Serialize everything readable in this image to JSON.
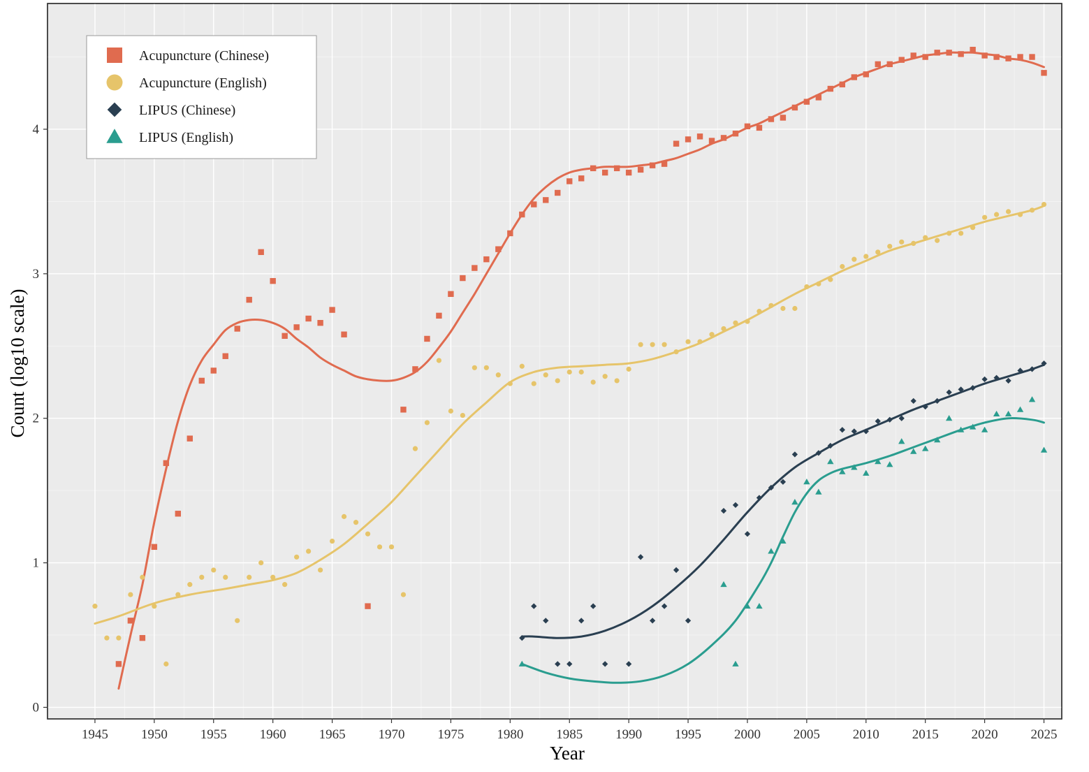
{
  "chart_data": {
    "type": "scatter",
    "title": "",
    "xlabel": "Year",
    "ylabel": "Count (log10 scale)",
    "xlim": [
      1941,
      2026.5
    ],
    "ylim": [
      -0.08,
      4.87
    ],
    "x_ticks": [
      "1945",
      "1950",
      "1955",
      "1960",
      "1965",
      "1970",
      "1975",
      "1980",
      "1985",
      "1990",
      "1995",
      "2000",
      "2005",
      "2010",
      "2015",
      "2020",
      "2025"
    ],
    "y_ticks": [
      "0",
      "1",
      "2",
      "3",
      "4"
    ],
    "grid": true,
    "legend_position": "top-left",
    "series": [
      {
        "name": "Acupuncture (Chinese)",
        "color": "#e06b4f",
        "marker": "square",
        "x": [
          1947,
          1948,
          1949,
          1950,
          1951,
          1952,
          1953,
          1954,
          1955,
          1956,
          1957,
          1958,
          1959,
          1960,
          1961,
          1962,
          1963,
          1964,
          1965,
          1966,
          1968,
          1971,
          1972,
          1973,
          1974,
          1975,
          1976,
          1977,
          1978,
          1979,
          1980,
          1981,
          1982,
          1983,
          1984,
          1985,
          1986,
          1987,
          1988,
          1989,
          1990,
          1991,
          1992,
          1993,
          1994,
          1995,
          1996,
          1997,
          1998,
          1999,
          2000,
          2001,
          2002,
          2003,
          2004,
          2005,
          2006,
          2007,
          2008,
          2009,
          2010,
          2011,
          2012,
          2013,
          2014,
          2015,
          2016,
          2017,
          2018,
          2019,
          2020,
          2021,
          2022,
          2023,
          2024,
          2025
        ],
        "values": [
          0.3,
          0.6,
          0.48,
          1.11,
          1.69,
          1.34,
          1.86,
          2.26,
          2.33,
          2.43,
          2.62,
          2.82,
          3.15,
          2.95,
          2.57,
          2.63,
          2.69,
          2.66,
          2.75,
          2.58,
          0.7,
          2.06,
          2.34,
          2.55,
          2.71,
          2.86,
          2.97,
          3.04,
          3.1,
          3.17,
          3.28,
          3.41,
          3.48,
          3.51,
          3.56,
          3.64,
          3.66,
          3.73,
          3.7,
          3.73,
          3.7,
          3.72,
          3.75,
          3.76,
          3.9,
          3.93,
          3.95,
          3.92,
          3.94,
          3.97,
          4.02,
          4.01,
          4.07,
          4.08,
          4.15,
          4.19,
          4.22,
          4.28,
          4.31,
          4.36,
          4.38,
          4.45,
          4.45,
          4.48,
          4.51,
          4.5,
          4.53,
          4.53,
          4.52,
          4.55,
          4.51,
          4.5,
          4.49,
          4.5,
          4.5,
          4.39
        ],
        "trend": [
          [
            1947,
            0.13
          ],
          [
            1948,
            0.5
          ],
          [
            1949,
            0.85
          ],
          [
            1950,
            1.28
          ],
          [
            1951,
            1.65
          ],
          [
            1952,
            1.98
          ],
          [
            1953,
            2.23
          ],
          [
            1954,
            2.4
          ],
          [
            1955,
            2.51
          ],
          [
            1956,
            2.61
          ],
          [
            1957,
            2.66
          ],
          [
            1958,
            2.68
          ],
          [
            1959,
            2.68
          ],
          [
            1960,
            2.66
          ],
          [
            1961,
            2.62
          ],
          [
            1962,
            2.55
          ],
          [
            1963,
            2.49
          ],
          [
            1964,
            2.42
          ],
          [
            1965,
            2.37
          ],
          [
            1966,
            2.33
          ],
          [
            1967,
            2.29
          ],
          [
            1968,
            2.27
          ],
          [
            1969,
            2.26
          ],
          [
            1970,
            2.26
          ],
          [
            1971,
            2.28
          ],
          [
            1972,
            2.32
          ],
          [
            1973,
            2.39
          ],
          [
            1974,
            2.49
          ],
          [
            1975,
            2.6
          ],
          [
            1976,
            2.73
          ],
          [
            1977,
            2.86
          ],
          [
            1978,
            3.0
          ],
          [
            1979,
            3.14
          ],
          [
            1980,
            3.28
          ],
          [
            1981,
            3.41
          ],
          [
            1982,
            3.52
          ],
          [
            1983,
            3.6
          ],
          [
            1984,
            3.66
          ],
          [
            1985,
            3.7
          ],
          [
            1986,
            3.72
          ],
          [
            1987,
            3.73
          ],
          [
            1988,
            3.74
          ],
          [
            1989,
            3.74
          ],
          [
            1990,
            3.74
          ],
          [
            1991,
            3.75
          ],
          [
            1992,
            3.76
          ],
          [
            1993,
            3.78
          ],
          [
            1994,
            3.8
          ],
          [
            1995,
            3.83
          ],
          [
            1996,
            3.86
          ],
          [
            1997,
            3.9
          ],
          [
            1998,
            3.93
          ],
          [
            1999,
            3.97
          ],
          [
            2000,
            4.01
          ],
          [
            2001,
            4.04
          ],
          [
            2002,
            4.08
          ],
          [
            2003,
            4.12
          ],
          [
            2004,
            4.16
          ],
          [
            2005,
            4.2
          ],
          [
            2006,
            4.24
          ],
          [
            2007,
            4.28
          ],
          [
            2008,
            4.32
          ],
          [
            2009,
            4.36
          ],
          [
            2010,
            4.39
          ],
          [
            2011,
            4.42
          ],
          [
            2012,
            4.45
          ],
          [
            2013,
            4.47
          ],
          [
            2014,
            4.49
          ],
          [
            2015,
            4.51
          ],
          [
            2016,
            4.52
          ],
          [
            2017,
            4.53
          ],
          [
            2018,
            4.53
          ],
          [
            2019,
            4.53
          ],
          [
            2020,
            4.52
          ],
          [
            2021,
            4.51
          ],
          [
            2022,
            4.49
          ],
          [
            2023,
            4.48
          ],
          [
            2024,
            4.46
          ],
          [
            2025,
            4.43
          ]
        ]
      },
      {
        "name": "Acupuncture (English)",
        "color": "#e6c46a",
        "marker": "circle",
        "x": [
          1945,
          1946,
          1947,
          1948,
          1949,
          1950,
          1951,
          1952,
          1953,
          1954,
          1955,
          1956,
          1957,
          1958,
          1959,
          1960,
          1961,
          1962,
          1963,
          1964,
          1965,
          1966,
          1967,
          1968,
          1969,
          1970,
          1971,
          1972,
          1973,
          1974,
          1975,
          1976,
          1977,
          1978,
          1979,
          1980,
          1981,
          1982,
          1983,
          1984,
          1985,
          1986,
          1987,
          1988,
          1989,
          1990,
          1991,
          1992,
          1993,
          1994,
          1995,
          1996,
          1997,
          1998,
          1999,
          2000,
          2001,
          2002,
          2003,
          2004,
          2005,
          2006,
          2007,
          2008,
          2009,
          2010,
          2011,
          2012,
          2013,
          2014,
          2015,
          2016,
          2017,
          2018,
          2019,
          2020,
          2021,
          2022,
          2023,
          2024,
          2025
        ],
        "values": [
          0.7,
          0.48,
          0.48,
          0.78,
          0.9,
          0.7,
          0.3,
          0.78,
          0.85,
          0.9,
          0.95,
          0.9,
          0.6,
          0.9,
          1.0,
          0.9,
          0.85,
          1.04,
          1.08,
          0.95,
          1.15,
          1.32,
          1.28,
          1.2,
          1.11,
          1.11,
          0.78,
          1.79,
          1.97,
          2.4,
          2.05,
          2.02,
          2.35,
          2.35,
          2.3,
          2.24,
          2.36,
          2.24,
          2.3,
          2.26,
          2.32,
          2.32,
          2.25,
          2.29,
          2.26,
          2.34,
          2.51,
          2.51,
          2.51,
          2.46,
          2.53,
          2.53,
          2.58,
          2.62,
          2.66,
          2.67,
          2.74,
          2.78,
          2.76,
          2.76,
          2.91,
          2.93,
          2.96,
          3.05,
          3.1,
          3.12,
          3.15,
          3.19,
          3.22,
          3.21,
          3.25,
          3.23,
          3.28,
          3.28,
          3.32,
          3.39,
          3.41,
          3.43,
          3.41,
          3.44,
          3.48
        ],
        "trend": [
          [
            1945,
            0.58
          ],
          [
            1947,
            0.63
          ],
          [
            1950,
            0.72
          ],
          [
            1953,
            0.78
          ],
          [
            1956,
            0.82
          ],
          [
            1958,
            0.85
          ],
          [
            1960,
            0.88
          ],
          [
            1962,
            0.93
          ],
          [
            1964,
            1.02
          ],
          [
            1966,
            1.13
          ],
          [
            1968,
            1.27
          ],
          [
            1970,
            1.42
          ],
          [
            1972,
            1.6
          ],
          [
            1974,
            1.78
          ],
          [
            1976,
            1.96
          ],
          [
            1978,
            2.11
          ],
          [
            1980,
            2.25
          ],
          [
            1982,
            2.32
          ],
          [
            1984,
            2.35
          ],
          [
            1986,
            2.36
          ],
          [
            1988,
            2.37
          ],
          [
            1990,
            2.38
          ],
          [
            1992,
            2.41
          ],
          [
            1994,
            2.46
          ],
          [
            1996,
            2.52
          ],
          [
            1998,
            2.6
          ],
          [
            2000,
            2.68
          ],
          [
            2002,
            2.77
          ],
          [
            2004,
            2.86
          ],
          [
            2006,
            2.94
          ],
          [
            2008,
            3.02
          ],
          [
            2010,
            3.09
          ],
          [
            2012,
            3.16
          ],
          [
            2014,
            3.21
          ],
          [
            2016,
            3.26
          ],
          [
            2018,
            3.31
          ],
          [
            2020,
            3.36
          ],
          [
            2022,
            3.4
          ],
          [
            2024,
            3.44
          ],
          [
            2025,
            3.47
          ]
        ]
      },
      {
        "name": "LIPUS (Chinese)",
        "color": "#2a3f51",
        "marker": "diamond",
        "x": [
          1981,
          1982,
          1983,
          1984,
          1985,
          1986,
          1987,
          1988,
          1990,
          1991,
          1992,
          1993,
          1994,
          1995,
          1998,
          1999,
          2000,
          2001,
          2002,
          2003,
          2004,
          2006,
          2007,
          2008,
          2009,
          2010,
          2011,
          2012,
          2013,
          2014,
          2015,
          2016,
          2017,
          2018,
          2019,
          2020,
          2021,
          2022,
          2023,
          2024,
          2025
        ],
        "values": [
          0.48,
          0.7,
          0.6,
          0.3,
          0.3,
          0.6,
          0.7,
          0.3,
          0.3,
          1.04,
          0.6,
          0.7,
          0.95,
          0.6,
          1.36,
          1.4,
          1.2,
          1.45,
          1.52,
          1.56,
          1.75,
          1.76,
          1.81,
          1.92,
          1.91,
          1.91,
          1.98,
          1.99,
          2.0,
          2.12,
          2.08,
          2.12,
          2.18,
          2.2,
          2.21,
          2.27,
          2.28,
          2.26,
          2.33,
          2.34,
          2.38
        ],
        "trend": [
          [
            1981,
            0.49
          ],
          [
            1982,
            0.49
          ],
          [
            1984,
            0.48
          ],
          [
            1986,
            0.49
          ],
          [
            1988,
            0.53
          ],
          [
            1990,
            0.6
          ],
          [
            1992,
            0.7
          ],
          [
            1994,
            0.83
          ],
          [
            1996,
            0.98
          ],
          [
            1998,
            1.16
          ],
          [
            2000,
            1.35
          ],
          [
            2002,
            1.52
          ],
          [
            2004,
            1.66
          ],
          [
            2006,
            1.76
          ],
          [
            2008,
            1.85
          ],
          [
            2010,
            1.92
          ],
          [
            2012,
            1.99
          ],
          [
            2014,
            2.06
          ],
          [
            2016,
            2.12
          ],
          [
            2018,
            2.18
          ],
          [
            2020,
            2.24
          ],
          [
            2022,
            2.29
          ],
          [
            2024,
            2.34
          ],
          [
            2025,
            2.37
          ]
        ]
      },
      {
        "name": "LIPUS (English)",
        "color": "#2a9d8f",
        "marker": "triangle",
        "x": [
          1981,
          1998,
          1999,
          2000,
          2001,
          2002,
          2003,
          2004,
          2005,
          2006,
          2007,
          2008,
          2009,
          2010,
          2011,
          2012,
          2013,
          2014,
          2015,
          2016,
          2017,
          2018,
          2019,
          2020,
          2021,
          2022,
          2023,
          2024,
          2025
        ],
        "values": [
          0.3,
          0.85,
          0.3,
          0.7,
          0.7,
          1.08,
          1.15,
          1.42,
          1.56,
          1.49,
          1.7,
          1.63,
          1.66,
          1.62,
          1.7,
          1.68,
          1.84,
          1.77,
          1.79,
          1.85,
          2.0,
          1.92,
          1.94,
          1.92,
          2.03,
          2.03,
          2.06,
          2.13,
          1.78
        ],
        "trend": [
          [
            1981,
            0.3
          ],
          [
            1983,
            0.24
          ],
          [
            1985,
            0.2
          ],
          [
            1987,
            0.18
          ],
          [
            1989,
            0.17
          ],
          [
            1991,
            0.18
          ],
          [
            1993,
            0.22
          ],
          [
            1995,
            0.3
          ],
          [
            1997,
            0.43
          ],
          [
            1999,
            0.6
          ],
          [
            2001,
            0.85
          ],
          [
            2002,
            1.0
          ],
          [
            2003,
            1.18
          ],
          [
            2004,
            1.35
          ],
          [
            2005,
            1.48
          ],
          [
            2006,
            1.57
          ],
          [
            2007,
            1.62
          ],
          [
            2008,
            1.65
          ],
          [
            2010,
            1.69
          ],
          [
            2012,
            1.74
          ],
          [
            2014,
            1.8
          ],
          [
            2016,
            1.86
          ],
          [
            2018,
            1.92
          ],
          [
            2020,
            1.97
          ],
          [
            2022,
            2.0
          ],
          [
            2024,
            1.99
          ],
          [
            2025,
            1.97
          ]
        ]
      }
    ]
  }
}
